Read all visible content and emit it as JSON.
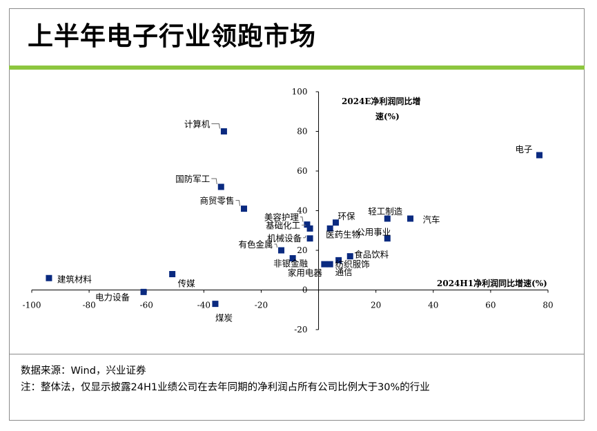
{
  "title": "上半年电子行业领跑市场",
  "colors": {
    "accent_bar": "#8dc63f",
    "marker": "#0a2a80"
  },
  "chart_data": {
    "type": "scatter",
    "x_axis_title": "2024H1净利润同比增速(%)",
    "y_axis_title_line1": "2024E净利润同比增",
    "y_axis_title_line2": "速(%)",
    "xlim": [
      -100,
      80
    ],
    "ylim": [
      -20,
      100
    ],
    "x_ticks": [
      -100,
      -80,
      -60,
      -40,
      -20,
      0,
      20,
      40,
      60,
      80
    ],
    "y_ticks": [
      -20,
      0,
      20,
      40,
      60,
      80,
      100
    ],
    "x_tick_labels": [
      "-100",
      "-80",
      "-60",
      "-40",
      "-20",
      "0",
      "20",
      "40",
      "60",
      "80"
    ],
    "y_tick_labels": [
      "-20",
      "0",
      "20",
      "40",
      "60",
      "80",
      "100"
    ],
    "points": [
      {
        "name": "电子",
        "x": 77,
        "y": 68
      },
      {
        "name": "计算机",
        "x": -33,
        "y": 80
      },
      {
        "name": "国防军工",
        "x": -34,
        "y": 52
      },
      {
        "name": "商贸零售",
        "x": -26,
        "y": 41
      },
      {
        "name": "美容护理",
        "x": -4,
        "y": 33
      },
      {
        "name": "基础化工",
        "x": -3,
        "y": 31
      },
      {
        "name": "机械设备",
        "x": -3,
        "y": 26
      },
      {
        "name": "有色金属",
        "x": -13,
        "y": 20
      },
      {
        "name": "非银金融",
        "x": -9,
        "y": 16
      },
      {
        "name": "家用电器",
        "x": 2,
        "y": 13
      },
      {
        "name": "通信",
        "x": 4,
        "y": 13
      },
      {
        "name": "纺织服饰",
        "x": 7,
        "y": 15
      },
      {
        "name": "食品饮料",
        "x": 11,
        "y": 17
      },
      {
        "name": "环保",
        "x": 6,
        "y": 34
      },
      {
        "name": "医药生物",
        "x": 4,
        "y": 31
      },
      {
        "name": "轻工制造",
        "x": 24,
        "y": 36
      },
      {
        "name": "汽车",
        "x": 32,
        "y": 36
      },
      {
        "name": "公用事业",
        "x": 24,
        "y": 26
      },
      {
        "name": "建筑材料",
        "x": -94,
        "y": 6
      },
      {
        "name": "传媒",
        "x": -51,
        "y": 8
      },
      {
        "name": "电力设备",
        "x": -61,
        "y": -1
      },
      {
        "name": "煤炭",
        "x": -36,
        "y": -7
      }
    ]
  },
  "source": "数据来源：Wind，兴业证券",
  "note": "注：整体法，仅显示披露24H1业绩公司在去年同期的净利润占所有公司比例大于30%的行业"
}
